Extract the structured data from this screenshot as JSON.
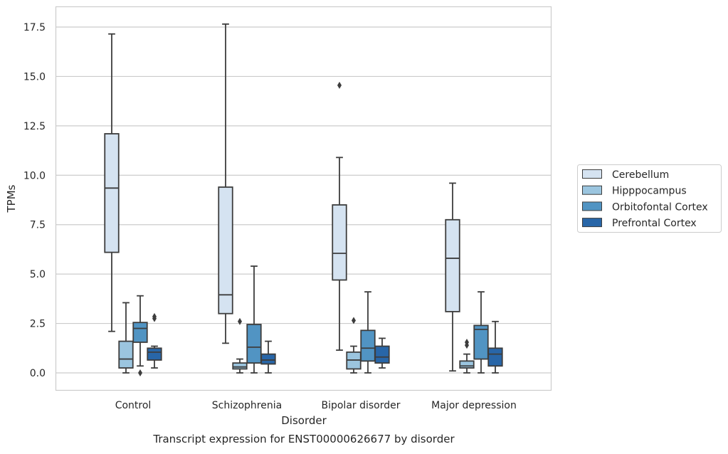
{
  "chart_data": {
    "type": "box",
    "caption": "Transcript expression for ENST00000626677 by disorder",
    "xlabel": "Disorder",
    "ylabel": "TPMs",
    "ylim": [
      -0.8,
      18.5
    ],
    "yticks": [
      "0.0",
      "2.5",
      "5.0",
      "7.5",
      "10.0",
      "12.5",
      "15.0",
      "17.5"
    ],
    "ytick_values": [
      0,
      2.5,
      5,
      7.5,
      10,
      12.5,
      15,
      17.5
    ],
    "grid": "horizontal",
    "legend_position": "right",
    "categories": [
      "Control",
      "Schizophrenia",
      "Bipolar disorder",
      "Major depression"
    ],
    "series": [
      {
        "name": "Cerebellum",
        "color": "#d5e3f1",
        "boxes": [
          {
            "whislo": 2.1,
            "q1": 6.1,
            "med": 9.35,
            "q3": 12.1,
            "whishi": 17.15,
            "fliers": []
          },
          {
            "whislo": 1.5,
            "q1": 3.0,
            "med": 3.95,
            "q3": 9.4,
            "whishi": 17.65,
            "fliers": []
          },
          {
            "whislo": 1.15,
            "q1": 4.7,
            "med": 6.05,
            "q3": 8.5,
            "whishi": 10.9,
            "fliers": [
              14.55
            ]
          },
          {
            "whislo": 0.1,
            "q1": 3.1,
            "med": 5.8,
            "q3": 7.75,
            "whishi": 9.6,
            "fliers": []
          }
        ]
      },
      {
        "name": "Hipppocampus",
        "color": "#9bc5df",
        "boxes": [
          {
            "whislo": 0.0,
            "q1": 0.25,
            "med": 0.7,
            "q3": 1.6,
            "whishi": 3.55,
            "fliers": []
          },
          {
            "whislo": 0.0,
            "q1": 0.2,
            "med": 0.3,
            "q3": 0.5,
            "whishi": 0.7,
            "fliers": [
              2.6
            ]
          },
          {
            "whislo": 0.0,
            "q1": 0.2,
            "med": 0.65,
            "q3": 1.05,
            "whishi": 1.35,
            "fliers": [
              2.65
            ]
          },
          {
            "whislo": 0.0,
            "q1": 0.25,
            "med": 0.35,
            "q3": 0.6,
            "whishi": 0.95,
            "fliers": [
              1.4,
              1.55
            ]
          }
        ]
      },
      {
        "name": "Orbitofontal Cortex",
        "color": "#5194c3",
        "boxes": [
          {
            "whislo": 0.35,
            "q1": 1.55,
            "med": 2.25,
            "q3": 2.55,
            "whishi": 3.9,
            "fliers": [
              0.0
            ]
          },
          {
            "whislo": 0.0,
            "q1": 0.5,
            "med": 1.3,
            "q3": 2.45,
            "whishi": 5.4,
            "fliers": []
          },
          {
            "whislo": 0.0,
            "q1": 0.6,
            "med": 1.25,
            "q3": 2.15,
            "whishi": 4.1,
            "fliers": []
          },
          {
            "whislo": 0.0,
            "q1": 0.7,
            "med": 2.2,
            "q3": 2.4,
            "whishi": 4.1,
            "fliers": []
          }
        ]
      },
      {
        "name": "Prefrontal Cortex",
        "color": "#2866a8",
        "boxes": [
          {
            "whislo": 0.25,
            "q1": 0.65,
            "med": 1.05,
            "q3": 1.25,
            "whishi": 1.35,
            "fliers": [
              2.75,
              2.85
            ]
          },
          {
            "whislo": 0.0,
            "q1": 0.45,
            "med": 0.65,
            "q3": 0.95,
            "whishi": 1.6,
            "fliers": []
          },
          {
            "whislo": 0.25,
            "q1": 0.5,
            "med": 0.8,
            "q3": 1.35,
            "whishi": 1.75,
            "fliers": []
          },
          {
            "whislo": 0.0,
            "q1": 0.35,
            "med": 0.95,
            "q3": 1.25,
            "whishi": 2.6,
            "fliers": []
          }
        ]
      }
    ]
  }
}
